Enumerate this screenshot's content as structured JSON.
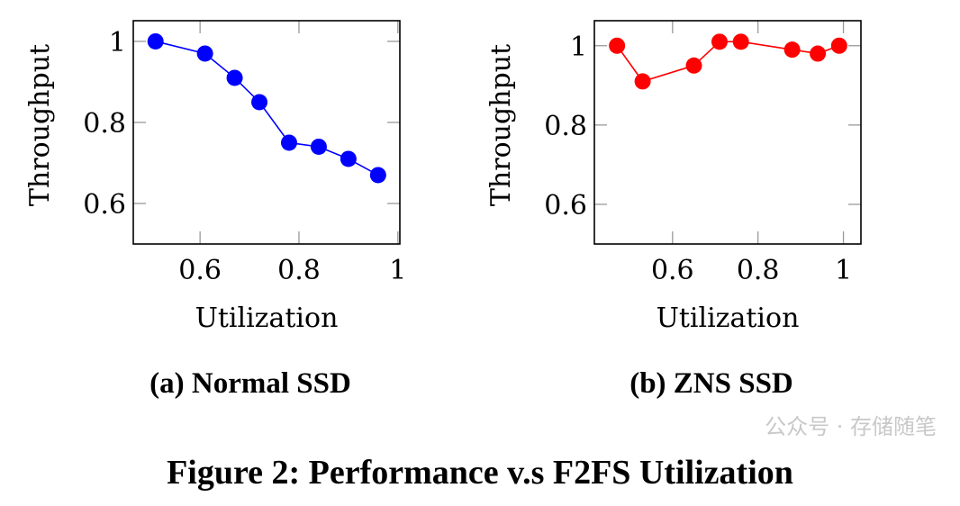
{
  "figure_caption": "Figure 2: Performance v.s F2FS Utilization",
  "watermark": "公众号 · 存储随笔",
  "chart_data": [
    {
      "type": "line",
      "subcaption": "(a) Normal SSD",
      "xlabel": "Utilization",
      "ylabel": "Throughput",
      "x": [
        0.51,
        0.61,
        0.67,
        0.72,
        0.78,
        0.84,
        0.9,
        0.96
      ],
      "y": [
        1.0,
        0.97,
        0.91,
        0.85,
        0.75,
        0.74,
        0.71,
        0.67
      ],
      "xlim": [
        0.465,
        1.004
      ],
      "ylim": [
        0.5,
        1.051
      ],
      "xticks": [
        0.6,
        0.8,
        1
      ],
      "xtick_labels": [
        "0.6",
        "0.8",
        "1"
      ],
      "yticks": [
        0.6,
        0.8,
        1
      ],
      "ytick_labels": [
        "0.6",
        "0.8",
        "1"
      ],
      "color": "#0000ff",
      "marker": "circle",
      "grid": false
    },
    {
      "type": "line",
      "subcaption": "(b) ZNS SSD",
      "xlabel": "Utilization",
      "ylabel": "Throughput",
      "x": [
        0.47,
        0.53,
        0.65,
        0.71,
        0.76,
        0.88,
        0.94,
        0.99
      ],
      "y": [
        1.0,
        0.91,
        0.95,
        1.01,
        1.01,
        0.99,
        0.98,
        1.0
      ],
      "xlim": [
        0.417,
        1.041
      ],
      "ylim": [
        0.5,
        1.063
      ],
      "xticks": [
        0.6,
        0.8,
        1
      ],
      "xtick_labels": [
        "0.6",
        "0.8",
        "1"
      ],
      "yticks": [
        0.6,
        0.8,
        1
      ],
      "ytick_labels": [
        "0.6",
        "0.8",
        "1"
      ],
      "color": "#ff0000",
      "marker": "circle",
      "grid": false
    }
  ]
}
